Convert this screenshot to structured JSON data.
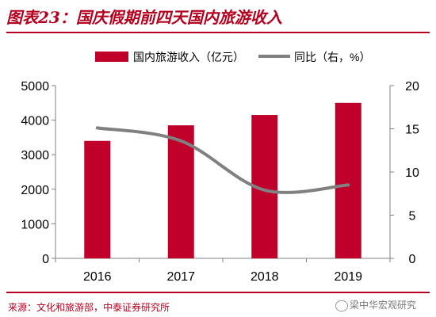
{
  "header": {
    "title": "图表23：国庆假期前四天国内旅游收入"
  },
  "footer": {
    "source": "来源：文化和旅游部，中泰证券研究所",
    "watermark": "梁中华宏观研究"
  },
  "chart_data": {
    "type": "bar",
    "categories": [
      "2016",
      "2017",
      "2018",
      "2019"
    ],
    "series": [
      {
        "name": "国内旅游收入（亿元）",
        "type": "bar",
        "axis": "left",
        "color": "#c0002b",
        "values": [
          3400,
          3850,
          4150,
          4500
        ]
      },
      {
        "name": "同比（右，%）",
        "type": "line",
        "axis": "right",
        "color": "#808080",
        "values": [
          15.1,
          13.6,
          7.9,
          8.5
        ]
      }
    ],
    "y_left": {
      "ylim": [
        0,
        5000
      ],
      "ticks": [
        "0",
        "1000",
        "2000",
        "3000",
        "4000",
        "5000"
      ]
    },
    "y_right": {
      "ylim": [
        0,
        20
      ],
      "ticks": [
        "0",
        "5",
        "10",
        "15",
        "20"
      ]
    },
    "legend": "top",
    "grid": false
  }
}
